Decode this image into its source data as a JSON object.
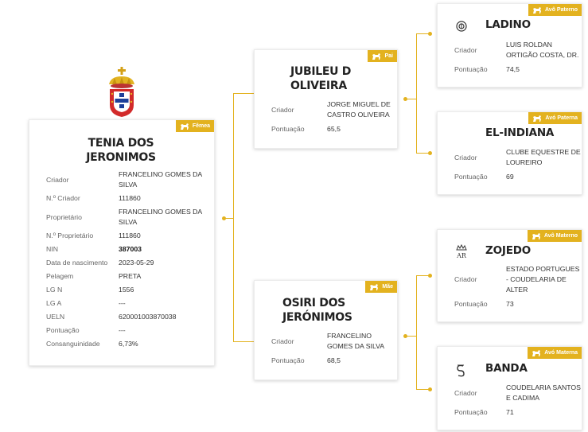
{
  "main": {
    "badge": "Fêmea",
    "name": "TENIA DOS JERONIMOS",
    "fields": [
      {
        "label": "Criador",
        "value": "FRANCELINO GOMES DA SILVA"
      },
      {
        "label": "N.º Criador",
        "value": "111860"
      },
      {
        "label": "Proprietário",
        "value": "FRANCELINO GOMES DA SILVA"
      },
      {
        "label": "N.º Proprietário",
        "value": "111860"
      },
      {
        "label": "NIN",
        "value": "387003"
      },
      {
        "label": "Data de nascimento",
        "value": "2023-05-29"
      },
      {
        "label": "Pelagem",
        "value": "PRETA"
      },
      {
        "label": "LG N",
        "value": "1556"
      },
      {
        "label": "LG A",
        "value": "---"
      },
      {
        "label": "UELN",
        "value": "620001003870038"
      },
      {
        "label": "Pontuação",
        "value": "---"
      },
      {
        "label": "Consanguinidade",
        "value": "6,73%"
      }
    ]
  },
  "father": {
    "badge": "Pai",
    "name": "JUBILEU D OLIVEIRA",
    "breeder_label": "Criador",
    "breeder": "JORGE MIGUEL DE CASTRO OLIVEIRA",
    "score_label": "Pontuação",
    "score": "65,5"
  },
  "mother": {
    "badge": "Mãe",
    "name": "OSIRI DOS JERÓNIMOS",
    "breeder_label": "Criador",
    "breeder": "FRANCELINO GOMES DA SILVA",
    "score_label": "Pontuação",
    "score": "68,5"
  },
  "grandparents": [
    {
      "badge": "Avô Paterno",
      "name": "LADINO",
      "icon": "circle-emblem-icon",
      "breeder_label": "Criador",
      "breeder": "LUIS ROLDAN ORTIGÃO COSTA, DR.",
      "score_label": "Pontuação",
      "score": "74,5"
    },
    {
      "badge": "Avó Paterna",
      "name": "EL-INDIANA",
      "icon": "",
      "breeder_label": "Criador",
      "breeder": "CLUBE EQUESTRE DE LOUREIRO",
      "score_label": "Pontuação",
      "score": "69"
    },
    {
      "badge": "Avô Materno",
      "name": "ZOJEDO",
      "icon": "crown-ar-icon",
      "breeder_label": "Criador",
      "breeder": "ESTADO PORTUGUES - COUDELARIA DE ALTER",
      "score_label": "Pontuação",
      "score": "73"
    },
    {
      "badge": "Avó Materna",
      "name": "BANDA",
      "icon": "brand-s-icon",
      "breeder_label": "Criador",
      "breeder": "COUDELARIA SANTOS E CADIMA",
      "score_label": "Pontuação",
      "score": "71"
    }
  ],
  "colors": {
    "accent": "#e3b21f"
  }
}
